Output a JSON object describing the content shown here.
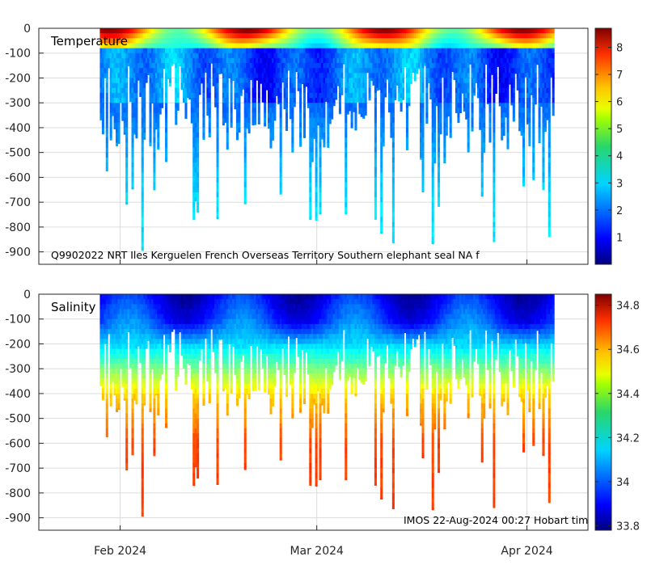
{
  "chart_data": [
    {
      "type": "heatmap",
      "title": "Temperature",
      "variable": "temperature",
      "x_tick_labels": [
        "Feb 2024",
        "Mar 2024",
        "Apr 2024"
      ],
      "x_tick_dates": [
        "2024-02-01",
        "2024-03-01",
        "2024-04-01"
      ],
      "x_range": [
        "2024-01-20",
        "2024-04-10"
      ],
      "data_x_range": [
        "2024-01-29",
        "2024-04-05"
      ],
      "y_ticks": [
        0,
        -100,
        -200,
        -300,
        -400,
        -500,
        -600,
        -700,
        -800,
        -900
      ],
      "ylim": [
        -950,
        0
      ],
      "grid": true,
      "colorbar": {
        "min": 0,
        "max": 8.7,
        "ticks": [
          1,
          2,
          3,
          4,
          5,
          6,
          7,
          8
        ],
        "colormap": "jet"
      },
      "annotation": "Q9902022 NRT Iles Kerguelen French Overseas Territory Southern elephant seal NA f",
      "profile_summary": {
        "surface_range": [
          4,
          8.5
        ],
        "subsurface_range_100_300m": [
          1,
          3
        ],
        "deep_range_300_900m": [
          2,
          3
        ],
        "typical_max_depth": -500,
        "deepest_profile": -900
      }
    },
    {
      "type": "heatmap",
      "title": "Salinity",
      "variable": "salinity",
      "x_tick_labels": [
        "Feb 2024",
        "Mar 2024",
        "Apr 2024"
      ],
      "x_tick_dates": [
        "2024-02-01",
        "2024-03-01",
        "2024-04-01"
      ],
      "x_range": [
        "2024-01-20",
        "2024-04-10"
      ],
      "data_x_range": [
        "2024-01-29",
        "2024-04-05"
      ],
      "y_ticks": [
        0,
        -100,
        -200,
        -300,
        -400,
        -500,
        -600,
        -700,
        -800,
        -900
      ],
      "ylim": [
        -950,
        0
      ],
      "grid": true,
      "colorbar": {
        "min": 33.78,
        "max": 34.85,
        "ticks": [
          33.8,
          34,
          34.2,
          34.4,
          34.6,
          34.8
        ],
        "colormap": "jet"
      },
      "annotation": "IMOS 22-Aug-2024 00:27 Hobart tim",
      "profile_summary": {
        "surface_range": [
          33.8,
          34.0
        ],
        "at_200m": 34.15,
        "at_400m": 34.5,
        "at_600m_and_deeper": 34.65
      }
    }
  ]
}
